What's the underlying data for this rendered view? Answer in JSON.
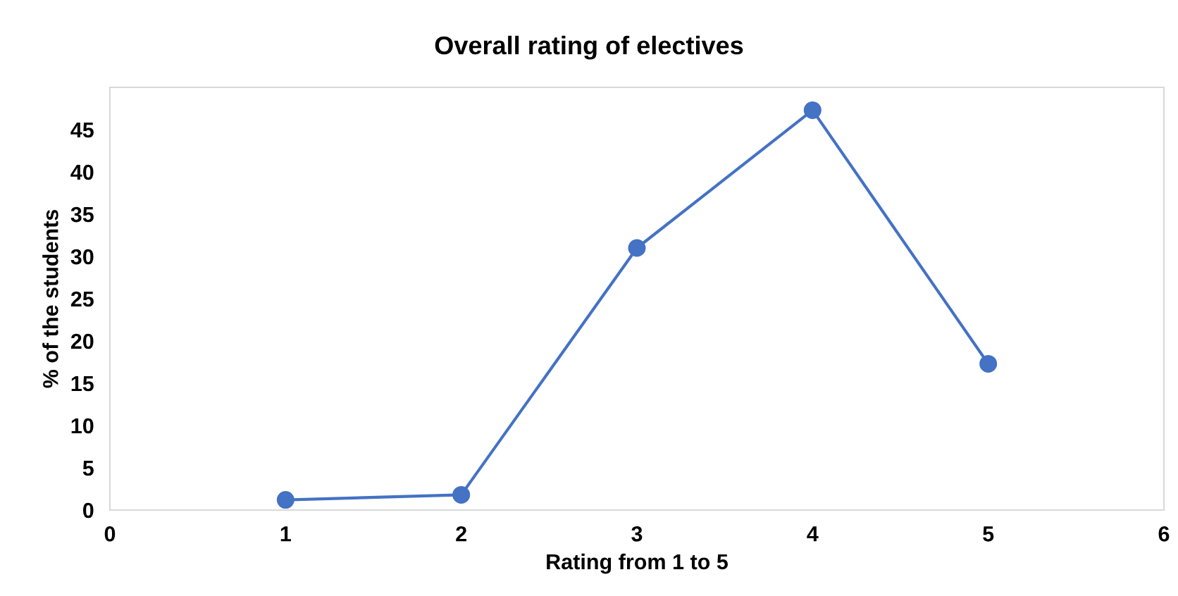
{
  "chart_data": {
    "type": "line",
    "title": "Overall rating of electives",
    "xlabel": "Rating from 1 to 5",
    "ylabel": "% of the students",
    "x": [
      1,
      2,
      3,
      4,
      5
    ],
    "series": [
      {
        "color": "#4472c4",
        "values": [
          1.2,
          1.8,
          31,
          47.3,
          17.3
        ]
      }
    ],
    "xlim": [
      0,
      6
    ],
    "xticks": [
      0,
      1,
      2,
      3,
      4,
      5,
      6
    ],
    "ylim": [
      0,
      50
    ],
    "yticks": [
      0,
      5,
      10,
      15,
      20,
      25,
      30,
      35,
      40,
      45
    ],
    "grid": false,
    "legend": false,
    "marker": "circle",
    "line_style": "solid"
  }
}
